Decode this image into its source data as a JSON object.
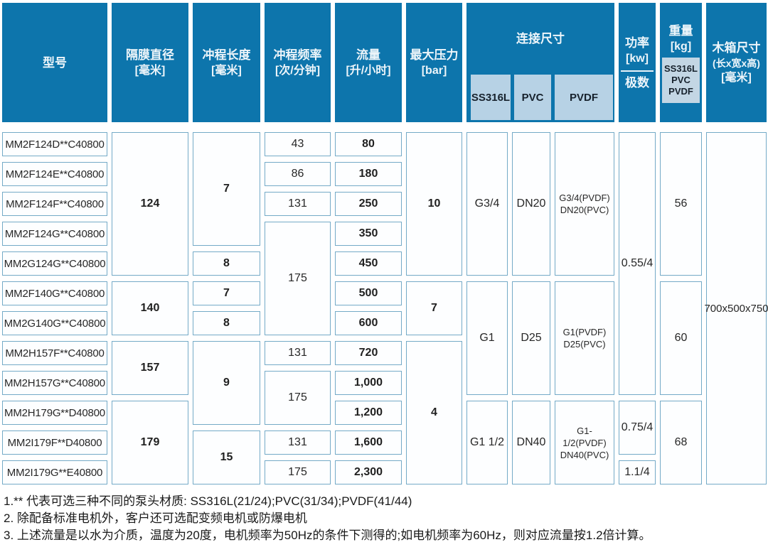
{
  "header": {
    "model": "型号",
    "diaphragm_l1": "隔膜直径",
    "diaphragm_l2": "[毫米]",
    "stroke_l1": "冲程长度",
    "stroke_l2": "[毫米]",
    "freq_l1": "冲程频率",
    "freq_l2": "[次/分钟]",
    "flow_l1": "流量",
    "flow_l2": "[升/小时]",
    "pressure_l1": "最大压力",
    "pressure_l2": "[bar]",
    "connection": "连接尺寸",
    "conn_sub": [
      "SS316L",
      "PVC",
      "PVDF"
    ],
    "power_l1": "功率",
    "power_l2": "[kw]",
    "power_l3": "极数",
    "weight_l1": "重量",
    "weight_l2": "[kg]",
    "weight_sub": [
      "SS316L",
      "PVC",
      "PVDF"
    ],
    "box_l1": "木箱尺寸",
    "box_l2": "(长x宽x高)",
    "box_l3": "[毫米]"
  },
  "table": {
    "models": [
      "MM2F124D**C40800",
      "MM2F124E**C40800",
      "MM2F124F**C40800",
      "MM2F124G**C40800",
      "MM2G124G**C40800",
      "MM2F140G**C40800",
      "MM2G140G**C40800",
      "MM2H157F**C40800",
      "MM2H157G**C40800",
      "MM2H179G**D40800",
      "MM2I179F**D40800",
      "MM2I179G**E40800"
    ],
    "diaphragm": [
      "124",
      "140",
      "157",
      "179"
    ],
    "stroke": [
      "7",
      "8",
      "7",
      "8",
      "9",
      "15"
    ],
    "frequency": [
      "43",
      "86",
      "131",
      "175",
      "131",
      "175",
      "131",
      "175"
    ],
    "flow": [
      "80",
      "180",
      "250",
      "350",
      "450",
      "500",
      "600",
      "720",
      "1,000",
      "1,200",
      "1,600",
      "2,300"
    ],
    "pressure": [
      "10",
      "7",
      "4"
    ],
    "conn_ss316l": [
      "G3/4",
      "G1",
      "G1 1/2"
    ],
    "conn_pvc": [
      "DN20",
      "D25",
      "DN40"
    ],
    "conn_pvdf": [
      [
        "G3/4(PVDF)",
        "DN20(PVC)"
      ],
      [
        "G1(PVDF)",
        "D25(PVC)"
      ],
      [
        "G1-1/2(PVDF)",
        "DN40(PVC)"
      ]
    ],
    "power": [
      "0.55/4",
      "0.75/4",
      "1.1/4"
    ],
    "weight": [
      "56",
      "60",
      "68"
    ],
    "box": "700x500x750"
  },
  "notes": [
    "1.** 代表可选三种不同的泵头材质: SS316L(21/24);PVC(31/34);PVDF(41/44)",
    "2. 除配备标准电机外，客户还可选配变频电机或防爆电机",
    "3. 上述流量是以水为介质，温度为20度，电机频率为50Hz的条件下测得的;如电机频率为60Hz，则对应流量按1.2倍计算。"
  ],
  "colors": {
    "header_blue": "#0d75ac",
    "light_blue": "#b7d2e5",
    "cell_border": "#74aac7"
  }
}
